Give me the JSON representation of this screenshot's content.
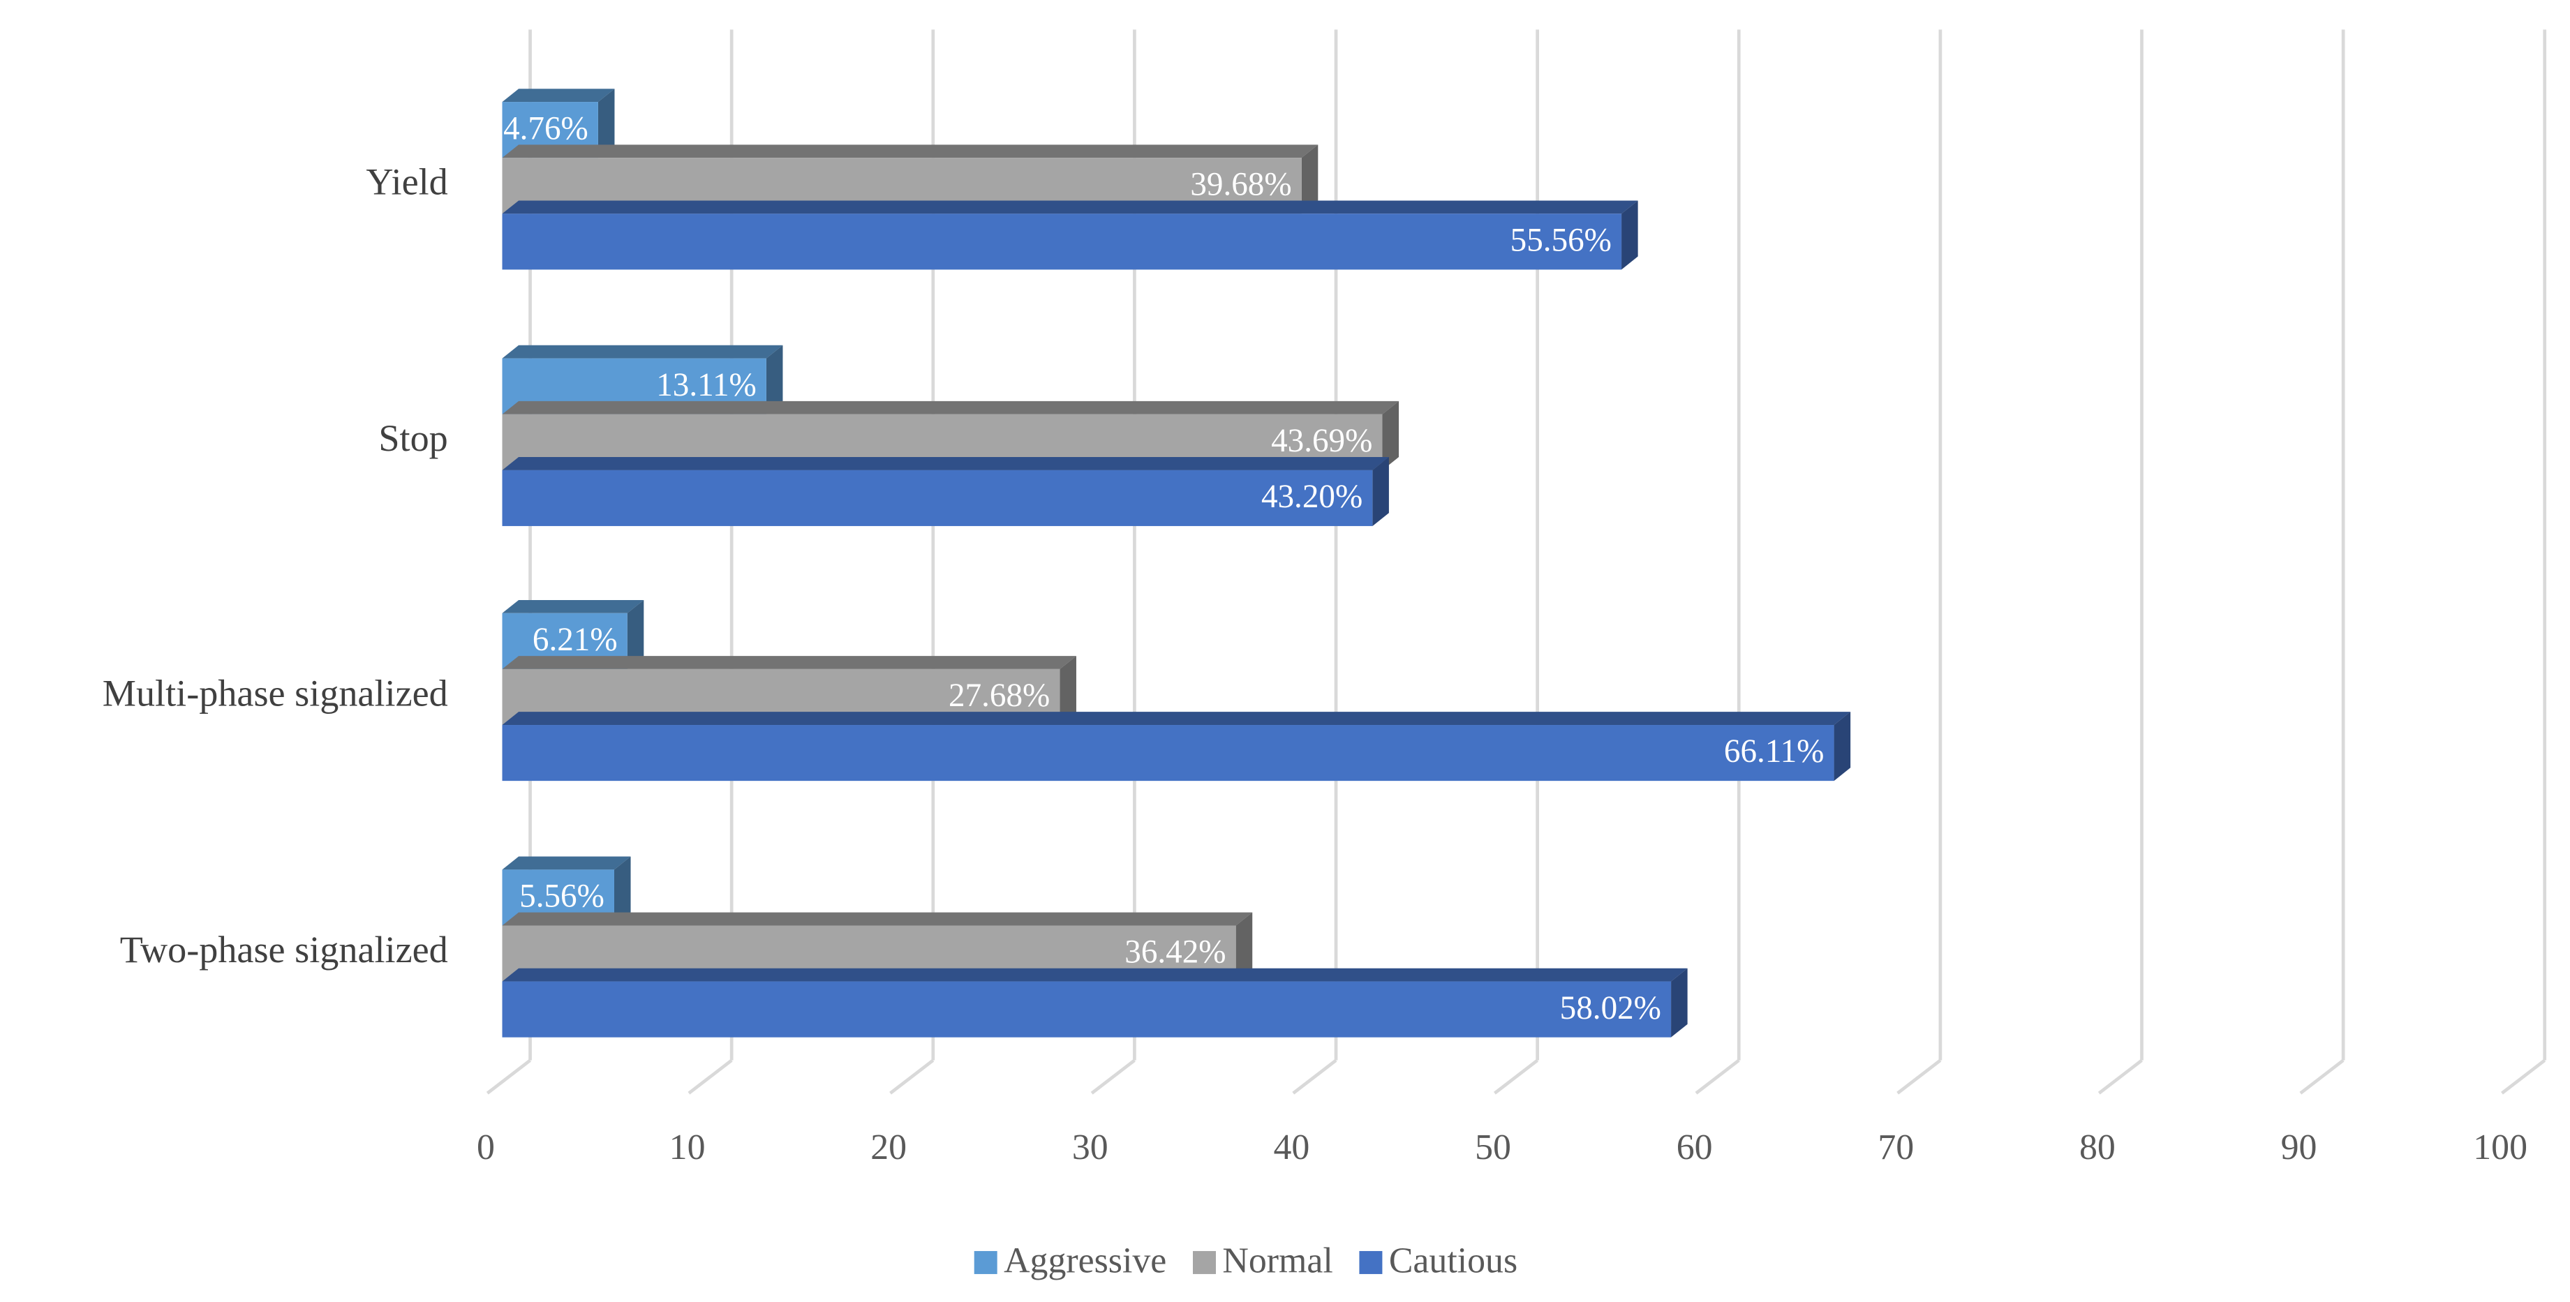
{
  "chart_data": {
    "type": "bar",
    "orientation": "horizontal",
    "categories": [
      "Yield",
      "Stop",
      "Multi-phase signalized",
      "Two-phase signalized"
    ],
    "series": [
      {
        "name": "Aggressive",
        "color": "#5b9bd5",
        "values": [
          4.76,
          13.11,
          6.21,
          5.56
        ],
        "value_labels": [
          "4.76%",
          "13.11%",
          "6.21%",
          "5.56%"
        ]
      },
      {
        "name": "Normal",
        "color": "#a5a5a5",
        "values": [
          39.68,
          43.69,
          27.68,
          36.42
        ],
        "value_labels": [
          "39.68%",
          "43.69%",
          "27.68%",
          "36.42%"
        ]
      },
      {
        "name": "Cautious",
        "color": "#4472c4",
        "values": [
          55.56,
          43.2,
          66.11,
          58.02
        ],
        "value_labels": [
          "55.56%",
          "43.20%",
          "66.11%",
          "58.02%"
        ]
      }
    ],
    "xlim": [
      0,
      100
    ],
    "xticks": [
      0,
      10,
      20,
      30,
      40,
      50,
      60,
      70,
      80,
      90,
      100
    ],
    "grid": true,
    "legend": "bottom"
  }
}
